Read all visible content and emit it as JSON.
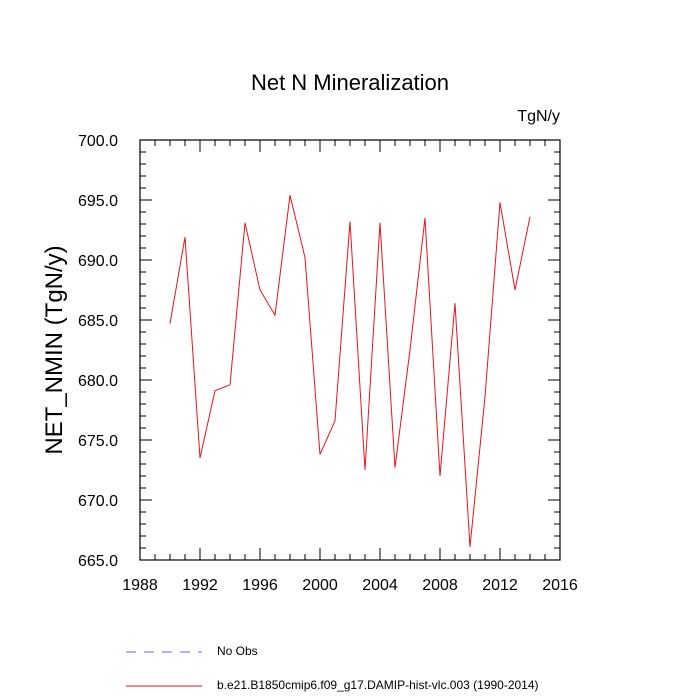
{
  "chart_data": {
    "type": "line",
    "title": "Net N Mineralization",
    "units": "TgN/y",
    "ylabel": "NET_NMIN  (TgN/y)",
    "xlabel": "",
    "xlim": [
      1988,
      2016
    ],
    "ylim": [
      665,
      700
    ],
    "x_ticks": [
      1988,
      1992,
      1996,
      2000,
      2004,
      2008,
      2012,
      2016
    ],
    "x_tick_labels": [
      "1988",
      "1992",
      "1996",
      "2000",
      "2004",
      "2008",
      "2012",
      "2016"
    ],
    "y_ticks": [
      665,
      670,
      675,
      680,
      685,
      690,
      695,
      700
    ],
    "y_tick_labels": [
      "665.0",
      "670.0",
      "675.0",
      "680.0",
      "685.0",
      "690.0",
      "695.0",
      "700.0"
    ],
    "series": [
      {
        "name": "b.e21.B1850cmip6.f09_g17.DAMIP-hist-vlc.003 (1990-2014)",
        "color": "#e8131b",
        "x": [
          1990,
          1991,
          1992,
          1993,
          1994,
          1995,
          1996,
          1997,
          1998,
          1999,
          2000,
          2001,
          2002,
          2003,
          2004,
          2005,
          2006,
          2007,
          2008,
          2009,
          2010,
          2011,
          2012,
          2013,
          2014
        ],
        "values": [
          684.7,
          691.9,
          673.5,
          679.1,
          679.6,
          693.1,
          687.5,
          685.4,
          695.4,
          690.2,
          673.8,
          676.6,
          693.2,
          672.5,
          693.1,
          672.7,
          682.5,
          693.5,
          672.0,
          686.4,
          666.1,
          678.6,
          694.8,
          687.5,
          693.6
        ]
      }
    ],
    "legend": [
      {
        "label": "No Obs",
        "color": "#6666ff",
        "style": "dashed"
      },
      {
        "label": "b.e21.B1850cmip6.f09_g17.DAMIP-hist-vlc.003 (1990-2014)",
        "color": "#e8131b",
        "style": "solid"
      }
    ]
  }
}
